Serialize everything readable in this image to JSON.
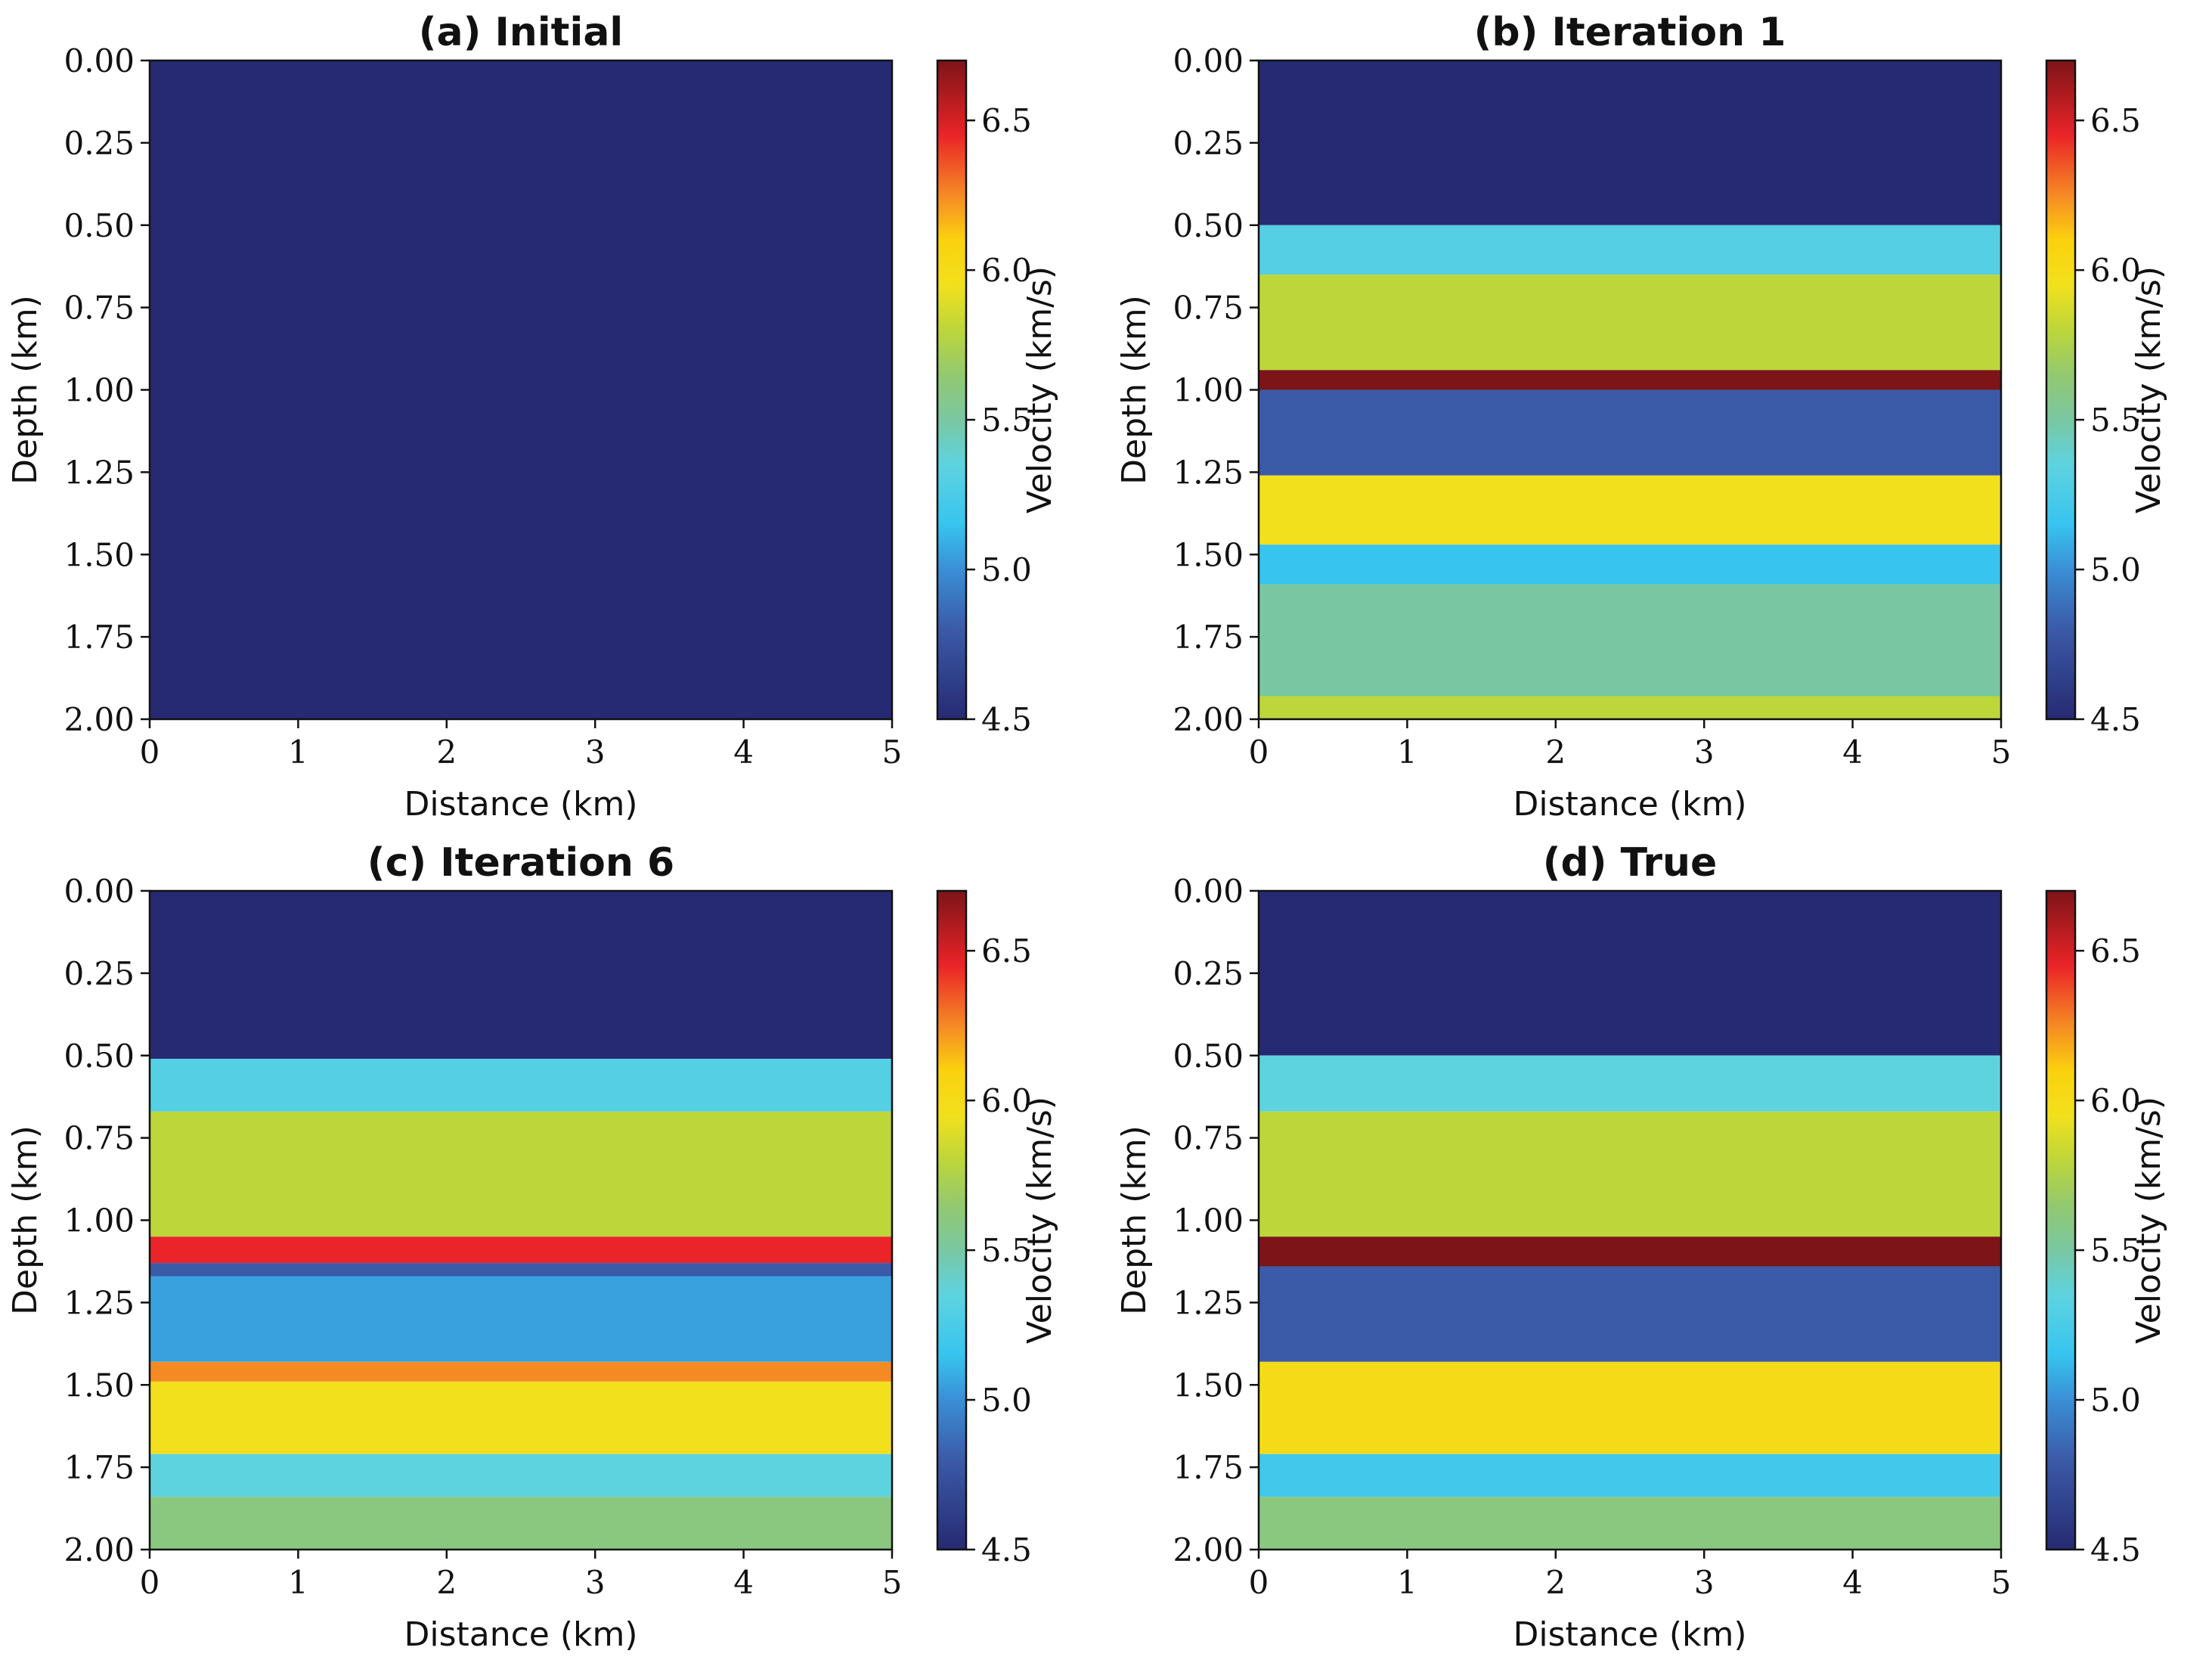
{
  "figure": {
    "colorscale": [
      {
        "v": 4.5,
        "color": "#262a72"
      },
      {
        "v": 4.8,
        "color": "#3b5aa8"
      },
      {
        "v": 5.0,
        "color": "#3a8fd6"
      },
      {
        "v": 5.15,
        "color": "#37c4ef"
      },
      {
        "v": 5.35,
        "color": "#5ed3e0"
      },
      {
        "v": 5.5,
        "color": "#79c7a2"
      },
      {
        "v": 5.65,
        "color": "#93c96f"
      },
      {
        "v": 5.8,
        "color": "#bdd63a"
      },
      {
        "v": 5.95,
        "color": "#f2e01c"
      },
      {
        "v": 6.1,
        "color": "#fbd10e"
      },
      {
        "v": 6.25,
        "color": "#f58a24"
      },
      {
        "v": 6.45,
        "color": "#ea2428"
      },
      {
        "v": 6.7,
        "color": "#7d1418"
      }
    ]
  },
  "chart_data": [
    {
      "type": "heatmap",
      "title": "(a) Initial",
      "xlabel": "Distance (km)",
      "ylabel": "Depth (km)",
      "colorbar_label": "Velocity (km/s)",
      "xlim": [
        0,
        5
      ],
      "ylim": [
        2.0,
        0.0
      ],
      "xticks": [
        "0",
        "1",
        "2",
        "3",
        "4",
        "5"
      ],
      "yticks": [
        "0.00",
        "0.25",
        "0.50",
        "0.75",
        "1.00",
        "1.25",
        "1.50",
        "1.75",
        "2.00"
      ],
      "clim": [
        4.5,
        6.7
      ],
      "colorbar_ticks": [
        "4.5",
        "5.0",
        "5.5",
        "6.0",
        "6.5"
      ],
      "layers": [
        {
          "top": 0.0,
          "bottom": 2.0,
          "velocity": 4.5
        }
      ]
    },
    {
      "type": "heatmap",
      "title": "(b) Iteration 1",
      "xlabel": "Distance (km)",
      "ylabel": "Depth (km)",
      "colorbar_label": "Velocity (km/s)",
      "xlim": [
        0,
        5
      ],
      "ylim": [
        2.0,
        0.0
      ],
      "xticks": [
        "0",
        "1",
        "2",
        "3",
        "4",
        "5"
      ],
      "yticks": [
        "0.00",
        "0.25",
        "0.50",
        "0.75",
        "1.00",
        "1.25",
        "1.50",
        "1.75",
        "2.00"
      ],
      "clim": [
        4.5,
        6.7
      ],
      "colorbar_ticks": [
        "4.5",
        "5.0",
        "5.5",
        "6.0",
        "6.5"
      ],
      "layers": [
        {
          "top": 0.0,
          "bottom": 0.5,
          "velocity": 4.5
        },
        {
          "top": 0.5,
          "bottom": 0.65,
          "velocity": 5.3
        },
        {
          "top": 0.65,
          "bottom": 0.94,
          "velocity": 5.8
        },
        {
          "top": 0.94,
          "bottom": 1.0,
          "velocity": 6.7
        },
        {
          "top": 1.0,
          "bottom": 1.26,
          "velocity": 4.8
        },
        {
          "top": 1.26,
          "bottom": 1.47,
          "velocity": 5.95
        },
        {
          "top": 1.47,
          "bottom": 1.59,
          "velocity": 5.15
        },
        {
          "top": 1.59,
          "bottom": 1.93,
          "velocity": 5.5
        },
        {
          "top": 1.93,
          "bottom": 2.0,
          "velocity": 5.8
        }
      ]
    },
    {
      "type": "heatmap",
      "title": "(c) Iteration 6",
      "xlabel": "Distance (km)",
      "ylabel": "Depth (km)",
      "colorbar_label": "Velocity (km/s)",
      "xlim": [
        0,
        5
      ],
      "ylim": [
        2.0,
        0.0
      ],
      "xticks": [
        "0",
        "1",
        "2",
        "3",
        "4",
        "5"
      ],
      "yticks": [
        "0.00",
        "0.25",
        "0.50",
        "0.75",
        "1.00",
        "1.25",
        "1.50",
        "1.75",
        "2.00"
      ],
      "clim": [
        4.5,
        6.7
      ],
      "colorbar_ticks": [
        "4.5",
        "5.0",
        "5.5",
        "6.0",
        "6.5"
      ],
      "layers": [
        {
          "top": 0.0,
          "bottom": 0.51,
          "velocity": 4.5
        },
        {
          "top": 0.51,
          "bottom": 0.67,
          "velocity": 5.3
        },
        {
          "top": 0.67,
          "bottom": 1.05,
          "velocity": 5.8
        },
        {
          "top": 1.05,
          "bottom": 1.13,
          "velocity": 6.45
        },
        {
          "top": 1.13,
          "bottom": 1.17,
          "velocity": 4.8
        },
        {
          "top": 1.17,
          "bottom": 1.43,
          "velocity": 5.05
        },
        {
          "top": 1.43,
          "bottom": 1.49,
          "velocity": 6.25
        },
        {
          "top": 1.49,
          "bottom": 1.71,
          "velocity": 5.95
        },
        {
          "top": 1.71,
          "bottom": 1.84,
          "velocity": 5.35
        },
        {
          "top": 1.84,
          "bottom": 2.0,
          "velocity": 5.6
        }
      ]
    },
    {
      "type": "heatmap",
      "title": "(d) True",
      "xlabel": "Distance (km)",
      "ylabel": "Depth (km)",
      "colorbar_label": "Velocity (km/s)",
      "xlim": [
        0,
        5
      ],
      "ylim": [
        2.0,
        0.0
      ],
      "xticks": [
        "0",
        "1",
        "2",
        "3",
        "4",
        "5"
      ],
      "yticks": [
        "0.00",
        "0.25",
        "0.50",
        "0.75",
        "1.00",
        "1.25",
        "1.50",
        "1.75",
        "2.00"
      ],
      "clim": [
        4.5,
        6.7
      ],
      "colorbar_ticks": [
        "4.5",
        "5.0",
        "5.5",
        "6.0",
        "6.5"
      ],
      "layers": [
        {
          "top": 0.0,
          "bottom": 0.5,
          "velocity": 4.5
        },
        {
          "top": 0.5,
          "bottom": 0.67,
          "velocity": 5.35
        },
        {
          "top": 0.67,
          "bottom": 1.05,
          "velocity": 5.8
        },
        {
          "top": 1.05,
          "bottom": 1.14,
          "velocity": 6.7
        },
        {
          "top": 1.14,
          "bottom": 1.43,
          "velocity": 4.8
        },
        {
          "top": 1.43,
          "bottom": 1.71,
          "velocity": 6.0
        },
        {
          "top": 1.71,
          "bottom": 1.84,
          "velocity": 5.2
        },
        {
          "top": 1.84,
          "bottom": 2.0,
          "velocity": 5.6
        }
      ]
    }
  ]
}
